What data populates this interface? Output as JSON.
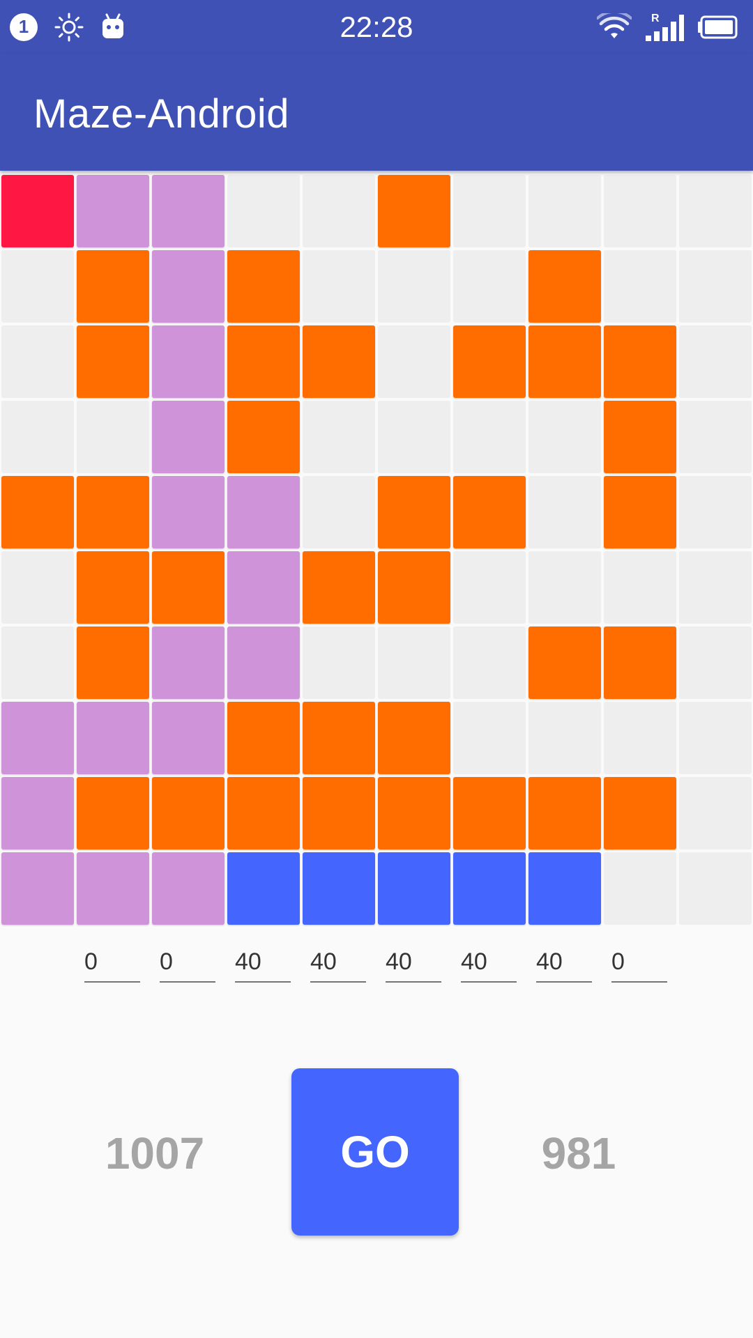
{
  "status_bar": {
    "notification_count": "1",
    "time": "22:28",
    "icons": [
      "brightness-icon",
      "android-debug-icon",
      "wifi-icon",
      "signal-roaming-icon",
      "battery-icon"
    ],
    "roaming_label": "R"
  },
  "app_bar": {
    "title": "Maze-Android",
    "color": "#3F51B5"
  },
  "maze": {
    "rows": 10,
    "cols": 10,
    "legend": {
      "E": "#EEEEEE",
      "S": "#FF1744",
      "P": "#CE93D8",
      "W": "#FF6D00",
      "B": "#4466FF"
    },
    "grid": [
      "SPPEEWEEEE",
      "EWPWEEEWEE",
      "EWPWWEWWWE",
      "EEPWEEEEWE",
      "WWPPEWWEWE",
      "EWWPWWEEEE",
      "EWPPEEEWWE",
      "PPPWWWEEEE",
      "PWWWWWWWWE",
      "PPPBBBBBEE"
    ]
  },
  "inputs": {
    "values": [
      "0",
      "0",
      "40",
      "40",
      "40",
      "40",
      "40",
      "0"
    ]
  },
  "controls": {
    "left_score": "1007",
    "go_label": "GO",
    "right_score": "981",
    "go_color": "#4466FF"
  }
}
